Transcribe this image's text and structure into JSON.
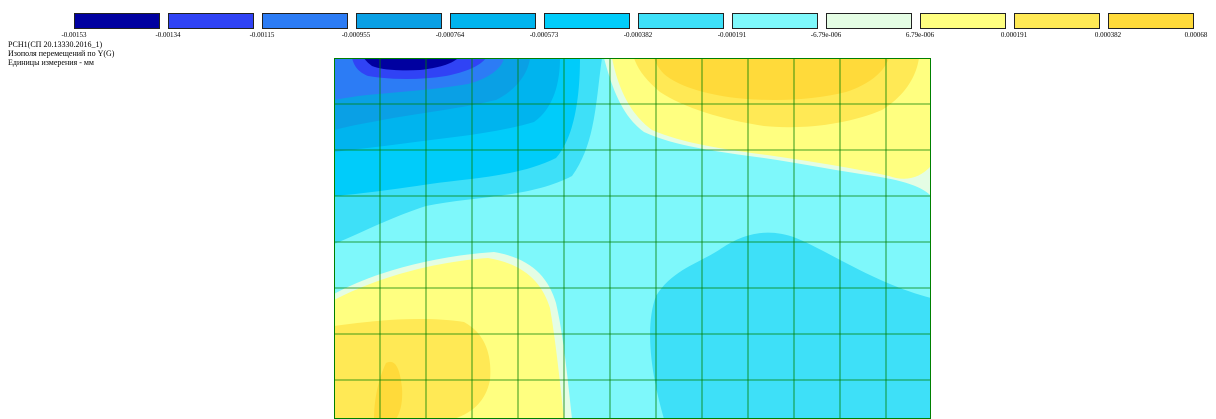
{
  "legend": {
    "colors": [
      "#0000a0",
      "#3043f5",
      "#2c7cf5",
      "#0aa0e5",
      "#00b4ee",
      "#00ccfa",
      "#3ee0f8",
      "#7ef8fb",
      "#e4fde4",
      "#ffff80",
      "#ffe955",
      "#ffda3a"
    ],
    "ticks": [
      "-0.00153",
      "-0.00134",
      "-0.00115",
      "-0.000955",
      "-0.000764",
      "-0.000573",
      "-0.000382",
      "-0.000191",
      "-6.79e-006",
      "6.79e-006",
      "0.000191",
      "0.000382",
      "0.00068"
    ]
  },
  "info": {
    "line1": "РСН1(СП 20.13330.2016_1)",
    "line2": "Изополя перемещений по Y(G)",
    "line3": "Единицы измерения - мм"
  },
  "plot": {
    "grid_color": "#008000",
    "grid_columns": 13,
    "grid_rows": 8
  }
}
